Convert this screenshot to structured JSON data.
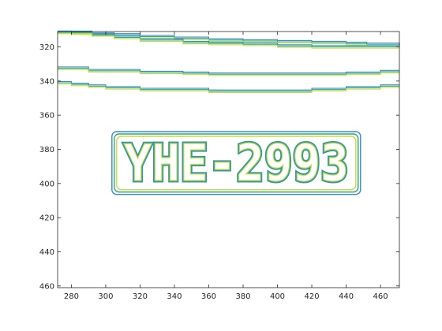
{
  "chart_data": {
    "type": "contour",
    "title": "",
    "xlabel": "",
    "ylabel": "",
    "xlim": [
      272,
      471
    ],
    "ylim": [
      311,
      461
    ],
    "y_reversed": true,
    "grid": false,
    "x_ticks": [
      280,
      300,
      320,
      340,
      360,
      380,
      400,
      420,
      440,
      460
    ],
    "y_ticks": [
      320,
      340,
      360,
      380,
      400,
      420,
      440,
      460
    ],
    "x_tick_labels": [
      "280",
      "300",
      "320",
      "340",
      "360",
      "380",
      "400",
      "420",
      "440",
      "460"
    ],
    "y_tick_labels": [
      "320",
      "340",
      "360",
      "380",
      "400",
      "420",
      "440",
      "460"
    ],
    "colors": [
      "#3b8bc2",
      "#2aa58c",
      "#c8dc3c"
    ],
    "contour_lines": [
      {
        "x": [
          272,
          280,
          292,
          305,
          320,
          340,
          360,
          380,
          400,
          420,
          440,
          452,
          471
        ],
        "y": [
          311.5,
          312,
          312.5,
          313,
          314,
          315,
          316,
          316.5,
          317,
          317.5,
          318,
          318.5,
          319
        ]
      },
      {
        "x": [
          272,
          292,
          305,
          320,
          345,
          360,
          380,
          400,
          420,
          440,
          460,
          471
        ],
        "y": [
          311.5,
          313,
          314.5,
          316,
          317.5,
          318,
          318.5,
          319.5,
          320,
          320,
          320,
          318.5
        ]
      },
      {
        "x": [
          272,
          280,
          290,
          300,
          320,
          345,
          360,
          380,
          400,
          420,
          440,
          460,
          471
        ],
        "y": [
          332.5,
          332.5,
          334,
          334,
          335,
          335.5,
          336,
          336,
          336,
          336,
          335.5,
          334.5,
          334.5
        ]
      },
      {
        "x": [
          272,
          280,
          290,
          300,
          320,
          340,
          360,
          380,
          400,
          420,
          440,
          460,
          471
        ],
        "y": [
          341,
          342,
          343,
          344,
          345,
          345,
          346,
          346,
          346,
          345,
          344,
          343,
          343
        ]
      }
    ],
    "plate_box": {
      "x": [
        305,
        447
      ],
      "y": [
        371,
        405
      ]
    },
    "plate_text": "YHE-2993"
  }
}
